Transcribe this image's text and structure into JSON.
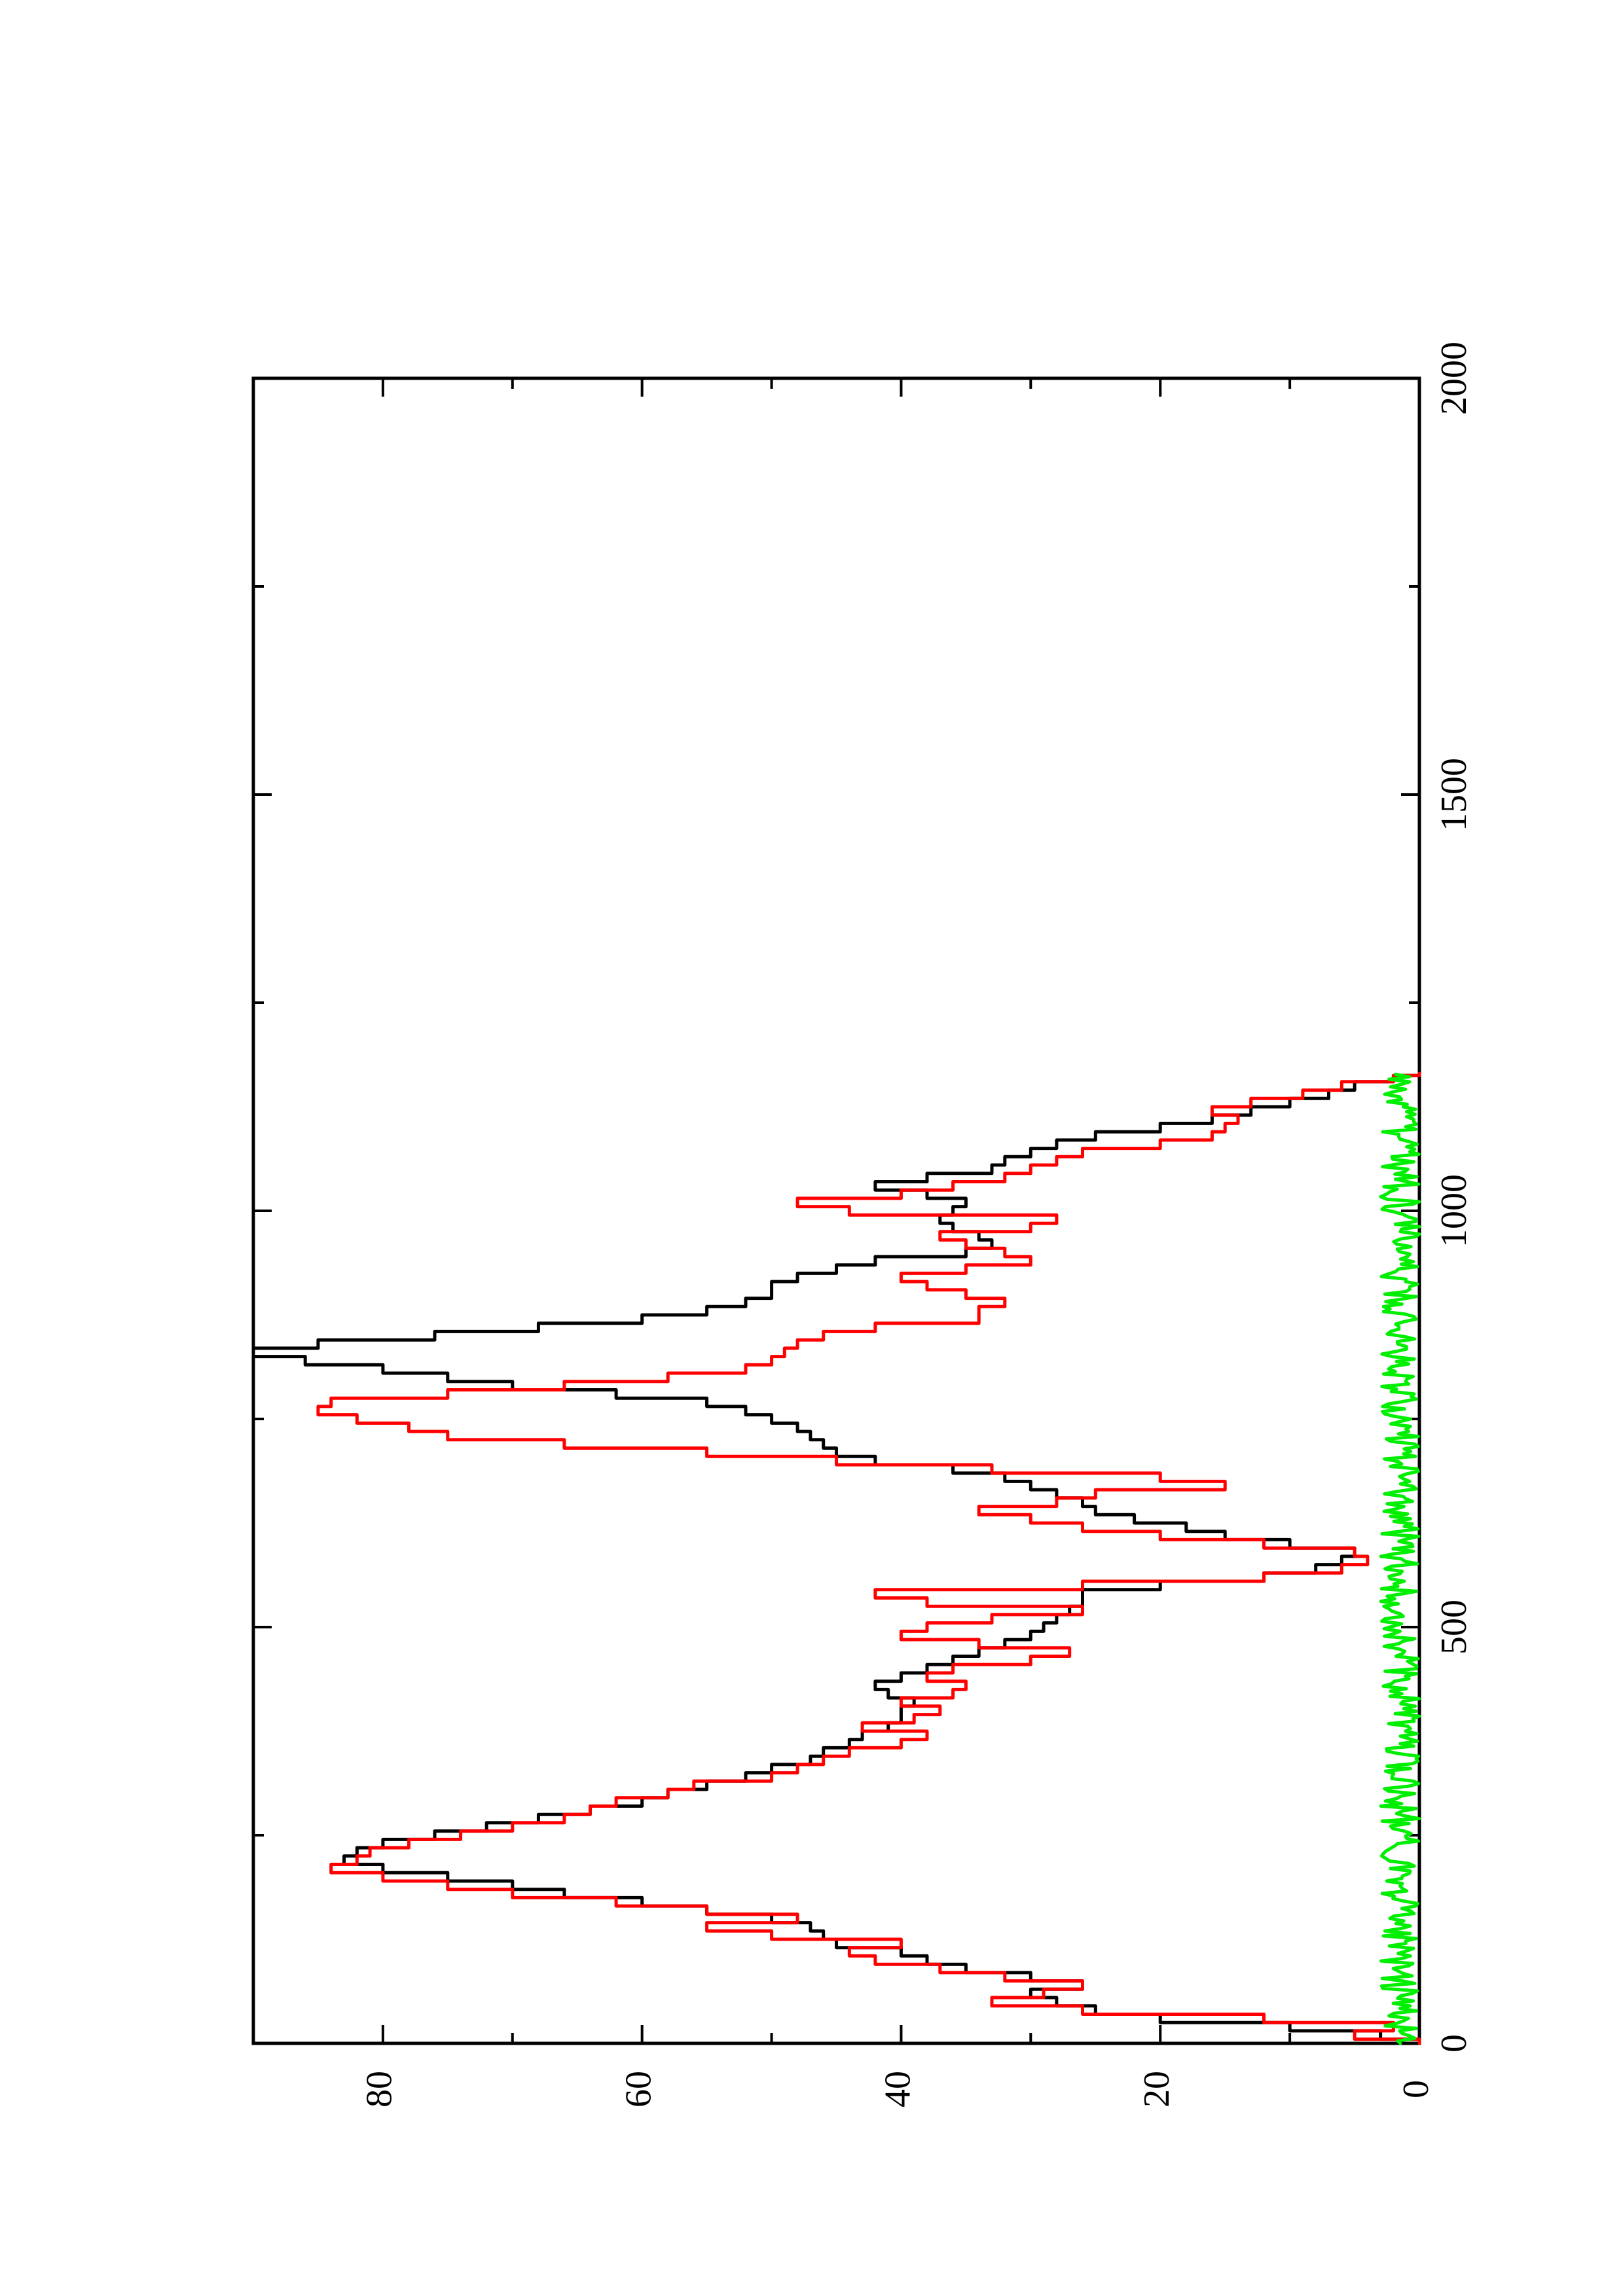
{
  "chart_data": {
    "type": "line",
    "title": "",
    "xlabel": "",
    "ylabel": "",
    "orientation": "rotated 90 degrees counter-clockwise (page landscape)",
    "xlim": [
      0,
      2000
    ],
    "ylim": [
      0,
      90
    ],
    "x_ticks": [
      0,
      500,
      1000,
      1500,
      2000
    ],
    "x_tick_labels": [
      "0",
      "500",
      "1000",
      "1500",
      "2000"
    ],
    "y_ticks": [
      0,
      20,
      40,
      60,
      80
    ],
    "y_tick_labels": [
      "0",
      "20",
      "40",
      "60",
      "80"
    ],
    "grid": false,
    "legend": "none",
    "series": [
      {
        "color": "#000000",
        "x": [
          0,
          10,
          20,
          30,
          40,
          50,
          60,
          70,
          80,
          90,
          100,
          110,
          120,
          130,
          140,
          150,
          160,
          170,
          180,
          190,
          200,
          210,
          220,
          230,
          240,
          250,
          260,
          270,
          280,
          290,
          300,
          310,
          320,
          330,
          340,
          350,
          360,
          370,
          380,
          390,
          400,
          410,
          420,
          430,
          440,
          450,
          460,
          470,
          480,
          490,
          500,
          510,
          520,
          530,
          540,
          550,
          560,
          570,
          580,
          590,
          600,
          610,
          620,
          630,
          640,
          650,
          660,
          670,
          680,
          690,
          700,
          710,
          720,
          730,
          740,
          750,
          760,
          770,
          780,
          790,
          800,
          810,
          820,
          830,
          840,
          850,
          860,
          870,
          880,
          890,
          900,
          910,
          920,
          930,
          940,
          950,
          960,
          970,
          980,
          990,
          1000,
          1010,
          1020,
          1030,
          1040,
          1050,
          1060,
          1070,
          1080,
          1090,
          1100,
          1110,
          1120,
          1130,
          1140,
          1150,
          1160,
          1165
        ],
        "y": [
          0,
          3,
          10,
          20,
          25,
          28,
          30,
          26,
          30,
          35,
          38,
          40,
          45,
          46,
          47,
          50,
          55,
          60,
          66,
          70,
          75,
          80,
          83,
          82,
          80,
          76,
          72,
          68,
          64,
          60,
          58,
          55,
          52,
          50,
          47,
          46,
          44,
          43,
          41,
          40,
          40,
          39,
          41,
          42,
          40,
          38,
          36,
          34,
          32,
          30,
          29,
          28,
          27,
          26,
          26,
          20,
          12,
          8,
          6,
          5,
          10,
          15,
          18,
          22,
          25,
          26,
          28,
          30,
          32,
          36,
          42,
          45,
          46,
          47,
          48,
          50,
          52,
          55,
          62,
          70,
          75,
          80,
          86,
          90,
          85,
          76,
          68,
          60,
          55,
          52,
          50,
          50,
          48,
          45,
          42,
          35,
          33,
          34,
          36,
          37,
          36,
          35,
          38,
          42,
          38,
          33,
          32,
          30,
          28,
          25,
          20,
          16,
          13,
          10,
          7,
          5,
          2,
          0
        ]
      },
      {
        "color": "#ff0000",
        "x": [
          0,
          10,
          20,
          30,
          40,
          50,
          60,
          70,
          80,
          90,
          100,
          110,
          120,
          130,
          140,
          150,
          160,
          170,
          180,
          190,
          200,
          210,
          220,
          230,
          240,
          250,
          260,
          270,
          280,
          290,
          300,
          310,
          320,
          330,
          340,
          350,
          360,
          370,
          380,
          390,
          400,
          410,
          420,
          430,
          440,
          450,
          460,
          470,
          480,
          490,
          500,
          510,
          520,
          530,
          540,
          550,
          560,
          570,
          580,
          590,
          600,
          610,
          620,
          630,
          640,
          650,
          660,
          670,
          680,
          690,
          700,
          710,
          720,
          730,
          740,
          750,
          760,
          770,
          780,
          790,
          800,
          810,
          820,
          830,
          840,
          850,
          860,
          870,
          880,
          890,
          900,
          910,
          920,
          930,
          940,
          950,
          960,
          970,
          980,
          990,
          1000,
          1010,
          1020,
          1030,
          1040,
          1050,
          1060,
          1070,
          1080,
          1090,
          1100,
          1110,
          1120,
          1130,
          1140,
          1150,
          1160,
          1165
        ],
        "y": [
          0,
          5,
          2,
          12,
          26,
          33,
          29,
          26,
          32,
          37,
          42,
          44,
          40,
          50,
          55,
          48,
          55,
          62,
          70,
          75,
          80,
          84,
          82,
          81,
          78,
          74,
          70,
          66,
          64,
          62,
          58,
          56,
          50,
          48,
          46,
          44,
          40,
          38,
          43,
          39,
          37,
          40,
          36,
          35,
          38,
          36,
          30,
          27,
          34,
          40,
          38,
          33,
          26,
          38,
          42,
          26,
          12,
          6,
          4,
          5,
          12,
          20,
          26,
          30,
          34,
          28,
          25,
          15,
          20,
          33,
          45,
          55,
          66,
          75,
          78,
          82,
          85,
          84,
          75,
          66,
          58,
          52,
          50,
          49,
          48,
          46,
          42,
          34,
          34,
          32,
          35,
          38,
          40,
          35,
          30,
          32,
          35,
          37,
          30,
          28,
          44,
          48,
          40,
          36,
          32,
          30,
          28,
          26,
          20,
          16,
          15,
          14,
          16,
          13,
          9,
          6,
          2,
          0
        ]
      },
      {
        "color": "#00ee00",
        "note": "noise band near zero",
        "x_range": [
          0,
          1165
        ],
        "y_range": [
          0,
          3
        ]
      }
    ]
  }
}
